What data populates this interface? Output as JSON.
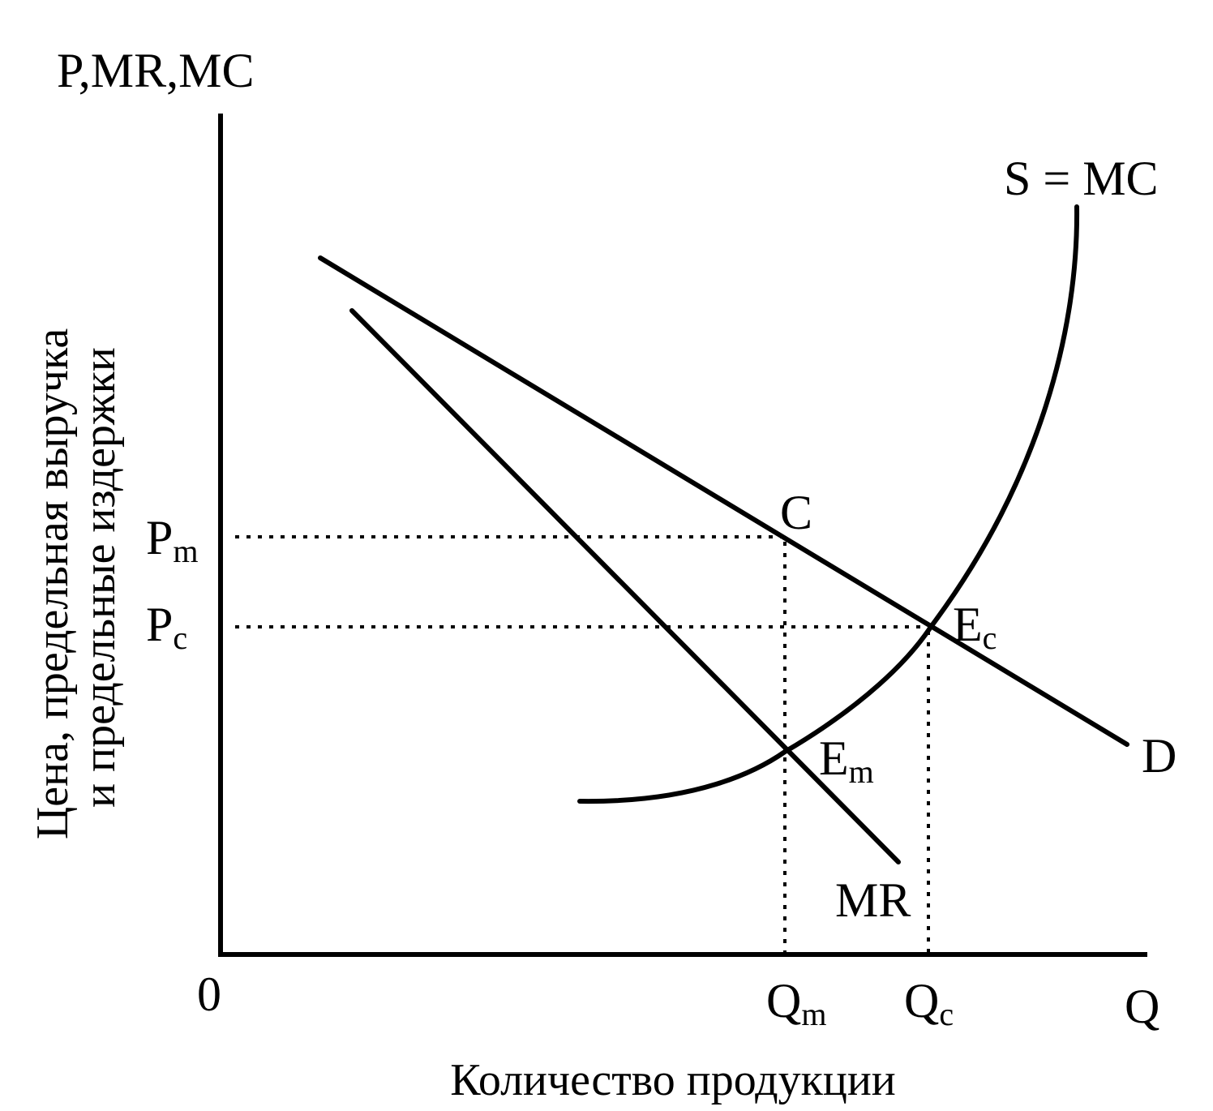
{
  "diagram": {
    "y_axis_label": "P,MR,MC",
    "y_axis_title_line1": "Цена, предельная выручка",
    "y_axis_title_line2": "и предельные издержки",
    "x_axis_title": "Количество продукции",
    "origin_label": "0",
    "x_axis_end_label": "Q",
    "supply_label": "S = MC",
    "demand_label": "D",
    "mr_label": "MR",
    "point_c_label": "C",
    "point_ec": {
      "main": "E",
      "sub": "c"
    },
    "point_em": {
      "main": "E",
      "sub": "m"
    },
    "price_monopoly": {
      "main": "P",
      "sub": "m"
    },
    "price_competitive": {
      "main": "P",
      "sub": "c"
    },
    "qty_monopoly": {
      "main": "Q",
      "sub": "m"
    },
    "qty_competitive": {
      "main": "Q",
      "sub": "c"
    }
  }
}
